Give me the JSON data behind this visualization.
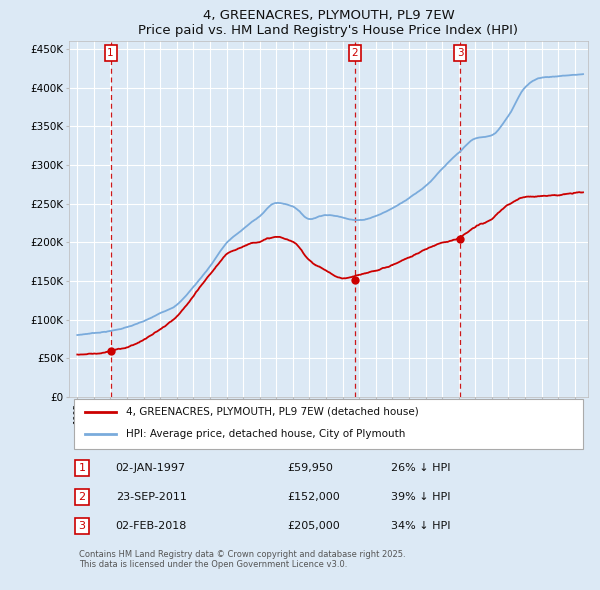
{
  "title": "4, GREENACRES, PLYMOUTH, PL9 7EW",
  "subtitle": "Price paid vs. HM Land Registry's House Price Index (HPI)",
  "background_color": "#dce9f5",
  "plot_bg_color": "#dce9f5",
  "ylim": [
    0,
    460000
  ],
  "yticks": [
    0,
    50000,
    100000,
    150000,
    200000,
    250000,
    300000,
    350000,
    400000,
    450000
  ],
  "ytick_labels": [
    "£0",
    "£50K",
    "£100K",
    "£150K",
    "£200K",
    "£250K",
    "£300K",
    "£350K",
    "£400K",
    "£450K"
  ],
  "xlim_start": 1994.5,
  "xlim_end": 2025.8,
  "sale_dates": [
    1997.01,
    2011.73,
    2018.09
  ],
  "sale_prices": [
    59950,
    152000,
    205000
  ],
  "sale_labels": [
    "1",
    "2",
    "3"
  ],
  "sale_info": [
    {
      "num": "1",
      "date": "02-JAN-1997",
      "price": "£59,950",
      "hpi": "26% ↓ HPI"
    },
    {
      "num": "2",
      "date": "23-SEP-2011",
      "price": "£152,000",
      "hpi": "39% ↓ HPI"
    },
    {
      "num": "3",
      "date": "02-FEB-2018",
      "price": "£205,000",
      "hpi": "34% ↓ HPI"
    }
  ],
  "legend_line1": "4, GREENACRES, PLYMOUTH, PL9 7EW (detached house)",
  "legend_line2": "HPI: Average price, detached house, City of Plymouth",
  "footer": "Contains HM Land Registry data © Crown copyright and database right 2025.\nThis data is licensed under the Open Government Licence v3.0.",
  "red_color": "#cc0000",
  "blue_color": "#7aabdc",
  "grid_color": "#ffffff",
  "hpi_years": [
    1995,
    1996,
    1997,
    1998,
    1999,
    2000,
    2001,
    2002,
    2003,
    2004,
    2005,
    2006,
    2007,
    2008,
    2009,
    2010,
    2011,
    2012,
    2013,
    2014,
    2015,
    2016,
    2017,
    2018,
    2019,
    2020,
    2021,
    2022,
    2023,
    2024,
    2025
  ],
  "hpi_vals": [
    80000,
    83000,
    86000,
    91000,
    98000,
    108000,
    120000,
    143000,
    170000,
    200000,
    218000,
    235000,
    252000,
    248000,
    232000,
    238000,
    235000,
    232000,
    238000,
    248000,
    262000,
    278000,
    300000,
    320000,
    338000,
    342000,
    368000,
    405000,
    418000,
    420000,
    422000
  ],
  "red_years": [
    1995,
    1996,
    1997,
    1998,
    1999,
    2000,
    2001,
    2002,
    2003,
    2004,
    2005,
    2006,
    2007,
    2008,
    2009,
    2010,
    2011,
    2012,
    2013,
    2014,
    2015,
    2016,
    2017,
    2018,
    2019,
    2020,
    2021,
    2022,
    2023,
    2024,
    2025
  ],
  "red_vals": [
    55000,
    57000,
    59950,
    65000,
    75000,
    88000,
    103000,
    128000,
    155000,
    180000,
    192000,
    200000,
    205000,
    198000,
    175000,
    162000,
    152000,
    155000,
    160000,
    168000,
    178000,
    188000,
    198000,
    205000,
    218000,
    228000,
    245000,
    255000,
    258000,
    260000,
    262000
  ]
}
